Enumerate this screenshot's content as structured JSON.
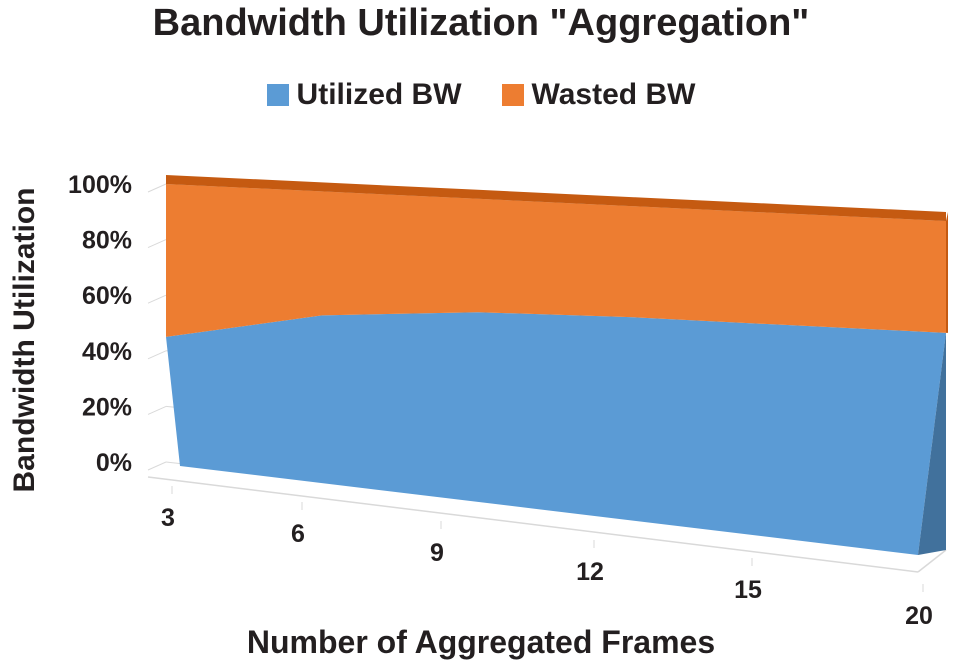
{
  "chart_data": {
    "type": "area",
    "title": "Bandwidth Utilization \"Aggregation\"",
    "xlabel": "Number of Aggregated Frames",
    "ylabel": "Bandwidth Utilization",
    "categories": [
      "3",
      "6",
      "9",
      "12",
      "15",
      "20"
    ],
    "y_ticks": [
      "0%",
      "20%",
      "40%",
      "60%",
      "80%",
      "100%"
    ],
    "ylim": [
      0,
      100
    ],
    "stacked": true,
    "grid": true,
    "legend_position": "top",
    "series": [
      {
        "name": "Utilized BW",
        "color": "#5b9bd5",
        "values": [
          45,
          57,
          62,
          64,
          65,
          66
        ]
      },
      {
        "name": "Wasted BW",
        "color": "#ed7d31",
        "values": [
          55,
          43,
          38,
          36,
          35,
          34
        ]
      }
    ]
  }
}
